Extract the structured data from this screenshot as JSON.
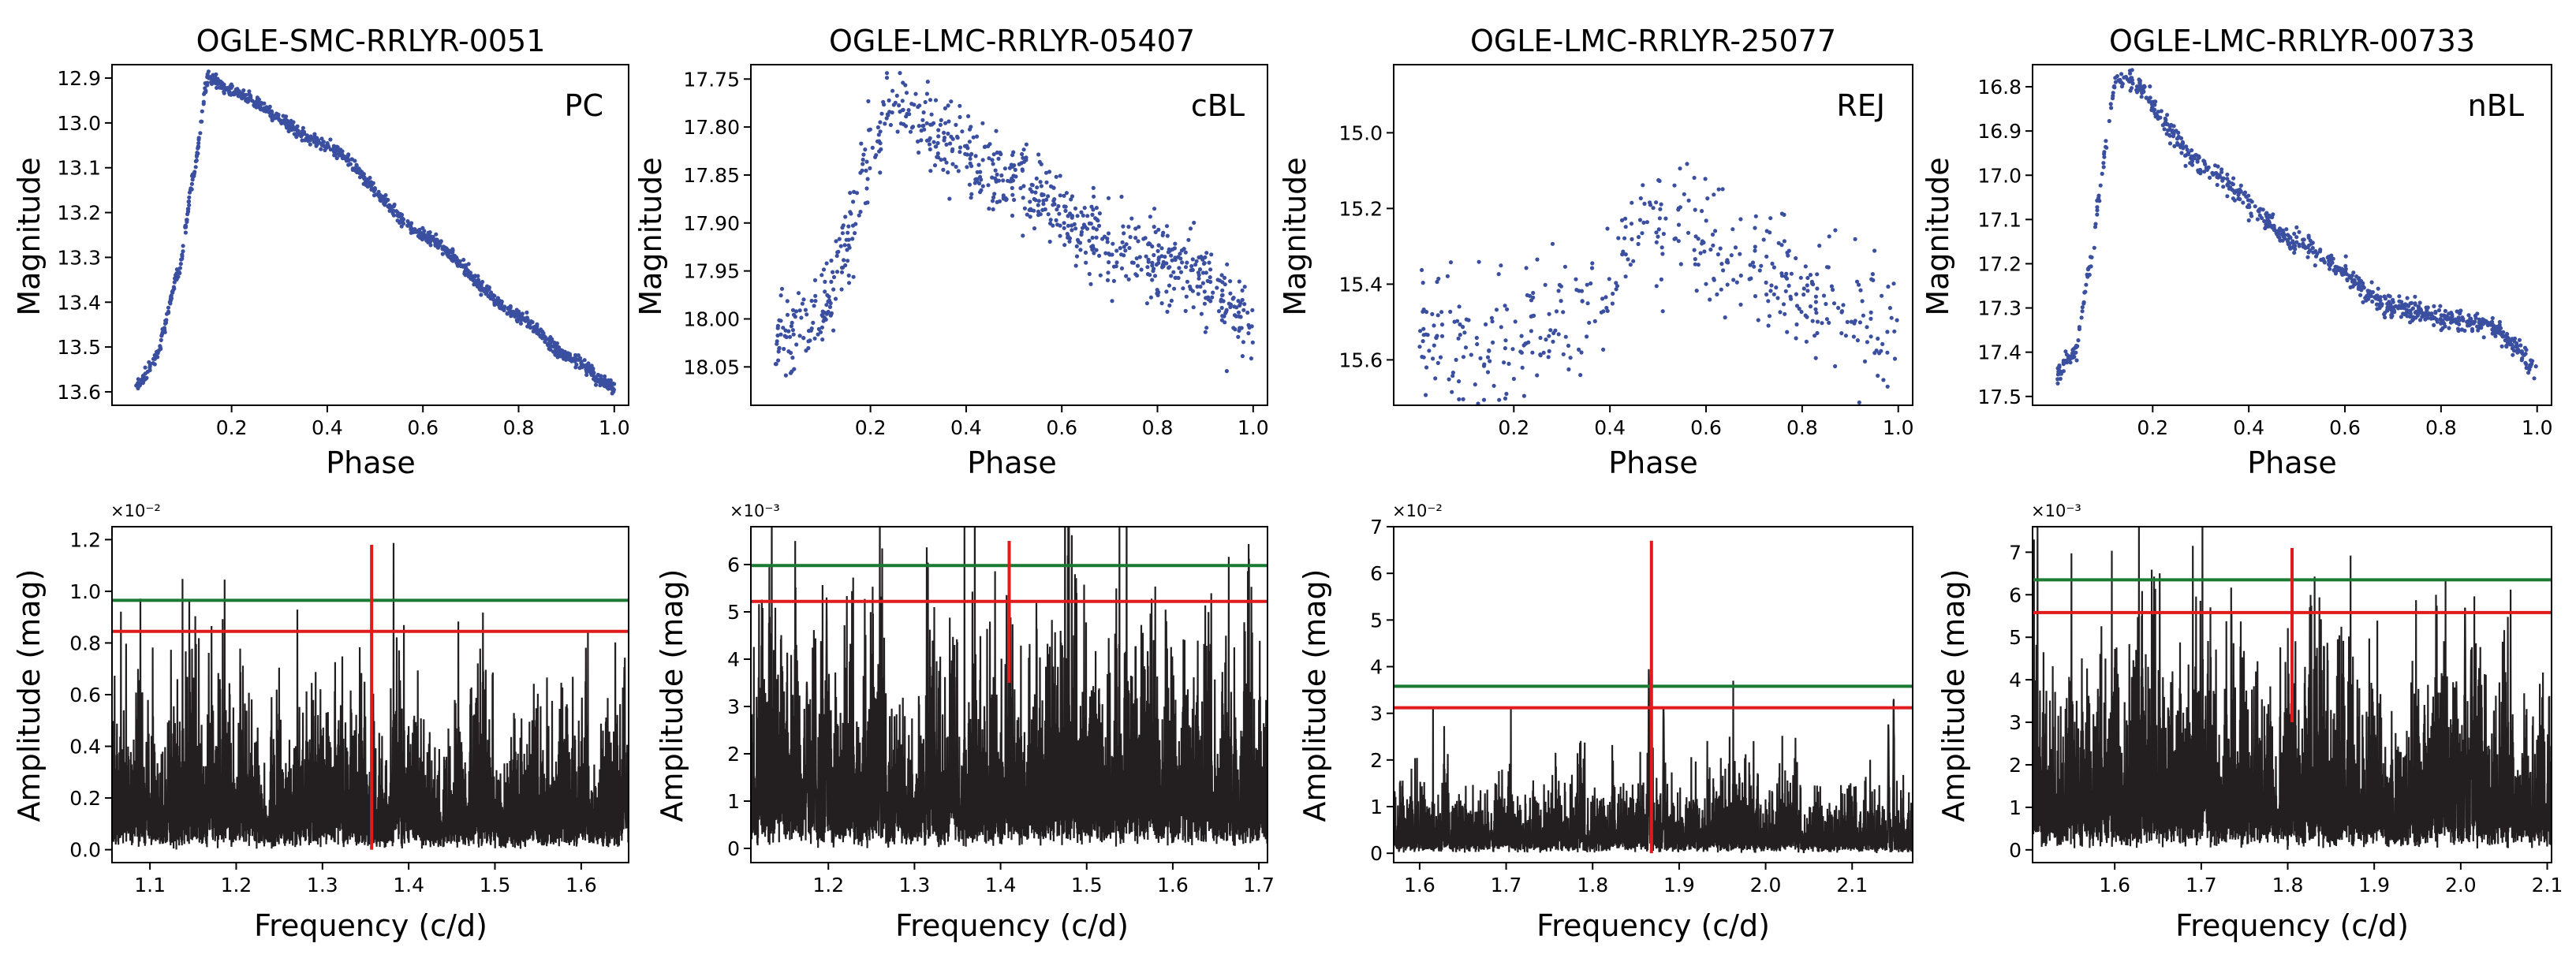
{
  "panels": [
    {
      "title": "OGLE-SMC-RRLYR-0051",
      "tag": "PC",
      "light_curve": {
        "xlabel": "Phase",
        "ylabel": "Magnitude",
        "xticks": [
          0.2,
          0.4,
          0.6,
          0.8,
          1.0
        ],
        "yticks": [
          12.9,
          13.0,
          13.1,
          13.2,
          13.3,
          13.4,
          13.5,
          13.6
        ],
        "xlim": [
          -0.05,
          1.03
        ],
        "ylim": [
          13.63,
          12.87
        ],
        "yticks_decimals": 1,
        "point_color": "#3b4fa0",
        "shape": {
          "kind": "smooth",
          "nodes": [
            [
              0.0,
              13.59
            ],
            [
              0.04,
              13.53
            ],
            [
              0.09,
              13.33
            ],
            [
              0.12,
              13.12
            ],
            [
              0.15,
              12.9
            ],
            [
              0.2,
              12.93
            ],
            [
              0.4,
              13.05
            ],
            [
              0.6,
              13.25
            ],
            [
              0.8,
              13.43
            ],
            [
              0.9,
              13.52
            ],
            [
              1.0,
              13.59
            ]
          ],
          "noise": 0.007,
          "outlier_rate": 0.0,
          "n": 1100
        }
      },
      "periodogram": {
        "xlabel": "Frequency (c/d)",
        "ylabel": "Amplitude (mag)",
        "offset_text": "×10⁻²",
        "xticks": [
          1.1,
          1.2,
          1.3,
          1.4,
          1.5,
          1.6
        ],
        "yticks": [
          0.0,
          0.2,
          0.4,
          0.6,
          0.8,
          1.0,
          1.2
        ],
        "xlim": [
          1.056,
          1.655
        ],
        "ylim": [
          -0.05,
          1.25
        ],
        "yticks_decimals": 1,
        "thresholds": {
          "green": 0.965,
          "red": 0.845
        },
        "marker_frequency": 1.357,
        "marker_ylim": [
          0.0,
          1.18
        ],
        "noise_level": 0.24,
        "peaks": [
          {
            "f": 1.357,
            "a": 1.03
          },
          {
            "f": 1.39,
            "a": 0.67
          },
          {
            "f": 1.65,
            "a": 0.76
          }
        ],
        "line_color": "#231f20",
        "green_color": "#1a7a32",
        "red_color": "#e01b1b"
      }
    },
    {
      "title": "OGLE-LMC-RRLYR-05407",
      "tag": "cBL",
      "light_curve": {
        "xlabel": "Phase",
        "ylabel": "Magnitude",
        "xticks": [
          0.2,
          0.4,
          0.6,
          0.8,
          1.0
        ],
        "yticks": [
          17.75,
          17.8,
          17.85,
          17.9,
          17.95,
          18.0,
          18.05
        ],
        "xlim": [
          -0.05,
          1.03
        ],
        "ylim": [
          18.09,
          17.735
        ],
        "yticks_decimals": 2,
        "point_color": "#3b4fa0",
        "shape": {
          "kind": "smooth",
          "nodes": [
            [
              0.0,
              18.02
            ],
            [
              0.1,
              18.0
            ],
            [
              0.15,
              17.92
            ],
            [
              0.2,
              17.82
            ],
            [
              0.25,
              17.78
            ],
            [
              0.35,
              17.81
            ],
            [
              0.5,
              17.86
            ],
            [
              0.7,
              17.92
            ],
            [
              0.85,
              17.95
            ],
            [
              1.0,
              18.0
            ]
          ],
          "noise": 0.022,
          "outlier_rate": 0.0,
          "n": 780
        }
      },
      "periodogram": {
        "xlabel": "Frequency (c/d)",
        "ylabel": "Amplitude (mag)",
        "offset_text": "×10⁻³",
        "xticks": [
          1.2,
          1.3,
          1.4,
          1.5,
          1.6,
          1.7
        ],
        "yticks": [
          0,
          1,
          2,
          3,
          4,
          5,
          6
        ],
        "xlim": [
          1.11,
          1.71
        ],
        "ylim": [
          -0.3,
          6.8
        ],
        "yticks_decimals": 0,
        "thresholds": {
          "green": 5.98,
          "red": 5.22
        },
        "marker_frequency": 1.41,
        "marker_ylim": [
          3.5,
          6.5
        ],
        "noise_level": 1.9,
        "peaks": [
          {
            "f": 1.198,
            "a": 5.7
          },
          {
            "f": 1.185,
            "a": 4.5
          },
          {
            "f": 1.175,
            "a": 4.1
          }
        ],
        "line_color": "#231f20",
        "green_color": "#1a7a32",
        "red_color": "#e01b1b"
      }
    },
    {
      "title": "OGLE-LMC-RRLYR-25077",
      "tag": "REJ",
      "light_curve": {
        "xlabel": "Phase",
        "ylabel": "Magnitude",
        "xticks": [
          0.2,
          0.4,
          0.6,
          0.8,
          1.0
        ],
        "yticks": [
          15.0,
          15.2,
          15.4,
          15.6
        ],
        "xlim": [
          -0.05,
          1.03
        ],
        "ylim": [
          15.72,
          14.82
        ],
        "yticks_decimals": 1,
        "point_color": "#3b4fa0",
        "shape": {
          "kind": "smooth",
          "nodes": [
            [
              0.0,
              15.55
            ],
            [
              0.2,
              15.55
            ],
            [
              0.35,
              15.48
            ],
            [
              0.45,
              15.28
            ],
            [
              0.55,
              15.25
            ],
            [
              0.7,
              15.35
            ],
            [
              0.85,
              15.45
            ],
            [
              1.0,
              15.52
            ]
          ],
          "noise": 0.085,
          "outlier_rate": 0.0,
          "n": 430
        }
      },
      "periodogram": {
        "xlabel": "Frequency (c/d)",
        "ylabel": "Amplitude (mag)",
        "offset_text": "×10⁻²",
        "xticks": [
          1.6,
          1.7,
          1.8,
          1.9,
          2.0,
          2.1
        ],
        "yticks": [
          0,
          1,
          2,
          3,
          4,
          5,
          6,
          7
        ],
        "xlim": [
          1.57,
          2.17
        ],
        "ylim": [
          -0.2,
          7.0
        ],
        "yticks_decimals": 0,
        "thresholds": {
          "green": 3.58,
          "red": 3.12
        },
        "marker_frequency": 1.868,
        "marker_ylim": [
          0.0,
          6.7
        ],
        "noise_level": 0.65,
        "peaks": [
          {
            "f": 1.868,
            "a": 5.8
          },
          {
            "f": 1.865,
            "a": 4.0
          },
          {
            "f": 1.882,
            "a": 3.5
          },
          {
            "f": 2.148,
            "a": 3.6
          },
          {
            "f": 2.142,
            "a": 3.0
          }
        ],
        "line_color": "#231f20",
        "green_color": "#1a7a32",
        "red_color": "#e01b1b"
      }
    },
    {
      "title": "OGLE-LMC-RRLYR-00733",
      "tag": "nBL",
      "light_curve": {
        "xlabel": "Phase",
        "ylabel": "Magnitude",
        "xticks": [
          0.2,
          0.4,
          0.6,
          0.8,
          1.0
        ],
        "yticks": [
          16.8,
          16.9,
          17.0,
          17.1,
          17.2,
          17.3,
          17.4,
          17.5
        ],
        "xlim": [
          -0.05,
          1.03
        ],
        "ylim": [
          17.52,
          16.75
        ],
        "yticks_decimals": 1,
        "point_color": "#3b4fa0",
        "shape": {
          "kind": "smooth",
          "nodes": [
            [
              0.0,
              17.45
            ],
            [
              0.04,
              17.4
            ],
            [
              0.07,
              17.2
            ],
            [
              0.1,
              16.95
            ],
            [
              0.12,
              16.8
            ],
            [
              0.15,
              16.78
            ],
            [
              0.3,
              16.98
            ],
            [
              0.5,
              17.15
            ],
            [
              0.7,
              17.3
            ],
            [
              0.9,
              17.34
            ],
            [
              0.95,
              17.38
            ],
            [
              1.0,
              17.45
            ]
          ],
          "noise": 0.012,
          "outlier_rate": 0.0,
          "n": 820
        }
      },
      "periodogram": {
        "xlabel": "Frequency (c/d)",
        "ylabel": "Amplitude (mag)",
        "offset_text": "×10⁻³",
        "xticks": [
          1.6,
          1.7,
          1.8,
          1.9,
          2.0,
          2.1
        ],
        "yticks": [
          0,
          1,
          2,
          3,
          4,
          5,
          6,
          7
        ],
        "xlim": [
          1.505,
          2.105
        ],
        "ylim": [
          -0.3,
          7.6
        ],
        "yticks_decimals": 0,
        "thresholds": {
          "green": 6.35,
          "red": 5.58
        },
        "marker_frequency": 1.805,
        "marker_ylim": [
          3.0,
          7.1
        ],
        "noise_level": 1.85,
        "peaks": [
          {
            "f": 2.005,
            "a": 6.2
          },
          {
            "f": 2.012,
            "a": 5.4
          },
          {
            "f": 1.995,
            "a": 4.6
          }
        ],
        "line_color": "#231f20",
        "green_color": "#1a7a32",
        "red_color": "#e01b1b"
      }
    }
  ]
}
